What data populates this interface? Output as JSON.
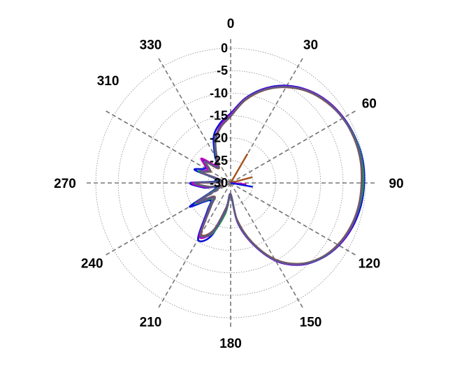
{
  "chart_data": {
    "type": "line",
    "coordinate_system": "polar",
    "theta_zero": "top",
    "theta_direction": "clockwise",
    "angle_ticks": [
      0,
      30,
      60,
      90,
      120,
      150,
      180,
      210,
      240,
      270,
      310,
      330
    ],
    "angle_tick_labels": [
      "0",
      "30",
      "60",
      "90",
      "120",
      "150",
      "180",
      "210",
      "240",
      "270",
      "310",
      "330"
    ],
    "radial_ticks": [
      0,
      -5,
      -10,
      -15,
      -20,
      -25,
      -30
    ],
    "radial_tick_labels": [
      "0",
      "-5",
      "-10",
      "-15",
      "-20",
      "-25",
      "-30"
    ],
    "rlim": [
      -30,
      0
    ],
    "grid": true,
    "legend": "none",
    "series": [
      {
        "color": "#0a14d6",
        "theta": [
          0,
          10,
          20,
          30,
          40,
          50,
          60,
          70,
          80,
          90,
          100,
          110,
          120,
          130,
          140,
          150,
          160,
          170,
          180,
          190,
          200,
          210,
          220,
          230,
          240,
          250,
          260,
          270,
          280,
          290,
          300,
          310,
          320,
          330,
          340,
          350
        ],
        "r": [
          -14.5,
          -10.8,
          -7.6,
          -5.0,
          -3.1,
          -1.8,
          -1.0,
          -0.5,
          -0.2,
          -0.3,
          -0.6,
          -1.2,
          -2.2,
          -3.8,
          -6.2,
          -10.0,
          -15.5,
          -21.0,
          -27.5,
          -24.0,
          -17.5,
          -15.5,
          -22.0,
          -24.0,
          -19.5,
          -26.5,
          -24.0,
          -21.0,
          -27.0,
          -21.5,
          -23.5,
          -22.0,
          -25.5,
          -23.0,
          -19.0,
          -16.5
        ]
      },
      {
        "color": "#1b9b4a",
        "theta": [
          0,
          10,
          20,
          30,
          40,
          50,
          60,
          70,
          80,
          90,
          100,
          110,
          120,
          130,
          140,
          150,
          160,
          170,
          180,
          190,
          200,
          210,
          220,
          230,
          240,
          250,
          260,
          270,
          280,
          290,
          300,
          310,
          320,
          330,
          340,
          350
        ],
        "r": [
          -15.0,
          -11.2,
          -7.9,
          -5.3,
          -3.3,
          -2.0,
          -1.1,
          -0.6,
          -0.4,
          -0.5,
          -0.9,
          -1.5,
          -2.4,
          -3.9,
          -6.4,
          -10.3,
          -15.8,
          -21.5,
          -27.0,
          -23.0,
          -18.0,
          -16.8,
          -22.5,
          -24.5,
          -21.0,
          -27.0,
          -25.0,
          -22.0,
          -27.5,
          -22.5,
          -24.5,
          -22.5,
          -25.5,
          -23.5,
          -19.8,
          -17.2
        ]
      },
      {
        "color": "#c200c2",
        "theta": [
          0,
          10,
          20,
          30,
          40,
          50,
          60,
          70,
          80,
          90,
          100,
          110,
          120,
          130,
          140,
          150,
          160,
          170,
          180,
          190,
          200,
          210,
          220,
          230,
          240,
          250,
          260,
          270,
          280,
          290,
          300,
          310,
          320,
          330,
          340,
          350
        ],
        "r": [
          -14.8,
          -11.0,
          -7.8,
          -5.2,
          -3.2,
          -1.9,
          -1.1,
          -0.7,
          -0.6,
          -0.8,
          -1.0,
          -1.4,
          -2.3,
          -3.9,
          -6.3,
          -10.1,
          -15.6,
          -21.2,
          -27.2,
          -24.0,
          -18.5,
          -16.2,
          -22.8,
          -25.0,
          -21.5,
          -27.5,
          -24.5,
          -21.5,
          -28.0,
          -23.0,
          -24.0,
          -21.5,
          -25.0,
          -23.8,
          -20.0,
          -17.0
        ]
      },
      {
        "color": "#a0521c",
        "theta": [
          0,
          10,
          20,
          30,
          40,
          50,
          60,
          70,
          80,
          90,
          100,
          110,
          120,
          130,
          140,
          150,
          160,
          170,
          180,
          190,
          200,
          210,
          220,
          230,
          240,
          250,
          260,
          270,
          280,
          290,
          300,
          310,
          320,
          330,
          340,
          350
        ],
        "r": [
          -15.2,
          -11.3,
          -8.0,
          -5.4,
          -3.4,
          -2.1,
          -1.2,
          -0.8,
          -0.7,
          -0.9,
          -1.1,
          -1.6,
          -2.5,
          -4.0,
          -6.5,
          -10.4,
          -15.9,
          -21.6,
          -27.4,
          -24.5,
          -18.8,
          -16.9,
          -23.2,
          -25.3,
          -22.0,
          -27.8,
          -25.2,
          -22.3,
          -28.2,
          -23.2,
          -24.8,
          -22.8,
          -25.8,
          -24.0,
          -20.2,
          -17.4
        ]
      },
      {
        "color": "#5b5b8a",
        "theta": [
          0,
          10,
          20,
          30,
          40,
          50,
          60,
          70,
          80,
          90,
          100,
          110,
          120,
          130,
          140,
          150,
          160,
          170,
          180,
          190,
          200,
          210,
          220,
          230,
          240,
          250,
          260,
          270,
          280,
          290,
          300,
          310,
          320,
          330,
          340,
          350
        ],
        "r": [
          -15.1,
          -11.1,
          -7.9,
          -5.3,
          -3.3,
          -2.0,
          -1.2,
          -0.7,
          -0.6,
          -0.8,
          -1.0,
          -1.5,
          -2.4,
          -3.9,
          -6.4,
          -10.2,
          -15.7,
          -21.3,
          -27.3,
          -24.2,
          -18.6,
          -16.6,
          -23.0,
          -25.1,
          -21.8,
          -27.6,
          -25.0,
          -22.0,
          -28.0,
          -23.0,
          -24.6,
          -22.6,
          -25.6,
          -23.9,
          -20.1,
          -17.3
        ]
      }
    ],
    "extra_lines": [
      {
        "color": "#a0521c",
        "theta": 30,
        "r": -22.5
      },
      {
        "color": "#a0521c",
        "theta": 75,
        "r": -25.0
      },
      {
        "color": "#c200c2",
        "theta": 95,
        "r": -26.5
      },
      {
        "color": "#0a14d6",
        "theta": 100,
        "r": -25.0
      }
    ]
  }
}
